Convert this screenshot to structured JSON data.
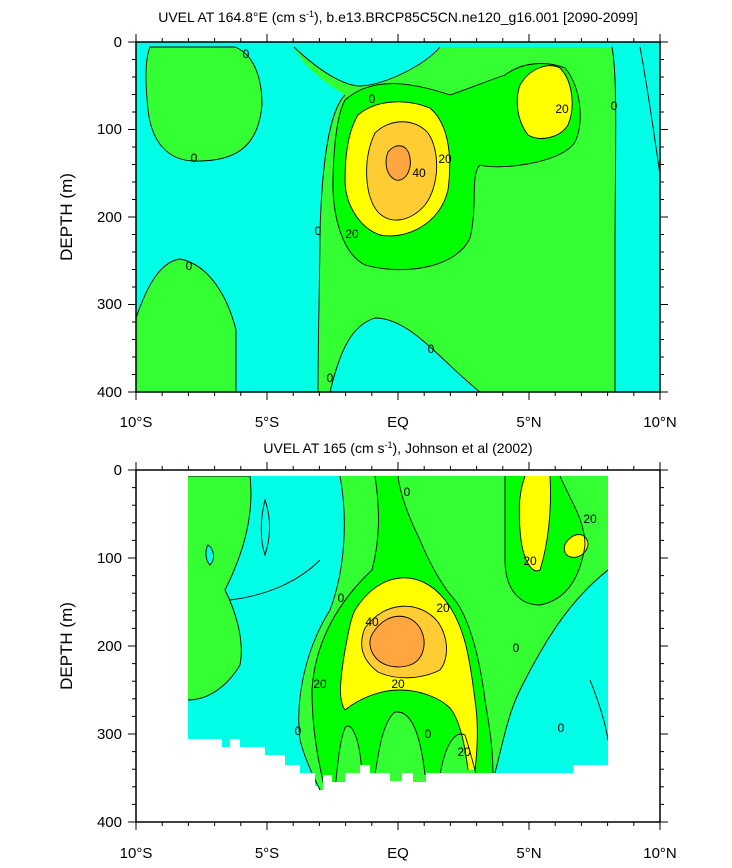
{
  "colors": {
    "neg": "#00ffe6",
    "c0_10": "#33ff33",
    "c10_20": "#00ff00",
    "c20_30": "#ffff00",
    "c30_40": "#ffcc33",
    "c40_50": "#ffa640",
    "line": "#000000"
  },
  "chart_data": [
    {
      "type": "contour",
      "title_main": "UVEL AT 164.8°E (cm s",
      "title_sup": "-1",
      "title_rest": "), b.e13.BRCP85C5CN.ne120_g16.001 [2090-2099]",
      "ylabel": "DEPTH (m)",
      "xlim": [
        -10,
        10
      ],
      "ylim": [
        400,
        0
      ],
      "xticklabels": [
        "10°S",
        "5°S",
        "EQ",
        "5°N",
        "10°N"
      ],
      "yticklabels": [
        "0",
        "100",
        "200",
        "300",
        "400"
      ],
      "contour_labels": [
        "0",
        "0",
        "0",
        "0",
        "0",
        "0",
        "0",
        "0",
        "20",
        "20",
        "20",
        "40"
      ]
    },
    {
      "type": "contour",
      "title_main": "UVEL AT 165 (cm s",
      "title_sup": "-1",
      "title_rest": "), Johnson et al (2002)",
      "ylabel": "DEPTH (m)",
      "xlim": [
        -10,
        10
      ],
      "ylim": [
        400,
        0
      ],
      "xticklabels": [
        "10°S",
        "5°S",
        "EQ",
        "5°N",
        "10°N"
      ],
      "yticklabels": [
        "0",
        "100",
        "200",
        "300",
        "400"
      ],
      "contour_labels": [
        "0",
        "0",
        "0",
        "0",
        "20",
        "20",
        "20",
        "20",
        "20",
        "20",
        "40"
      ]
    }
  ]
}
